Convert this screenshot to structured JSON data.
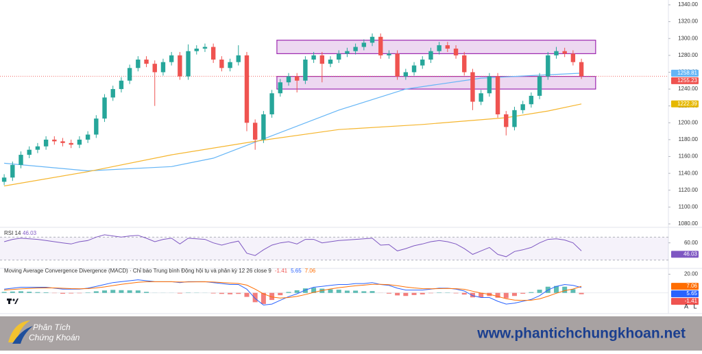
{
  "chart_data": [
    {
      "type": "candlestick",
      "xlim": [
        -0.5,
        79.4
      ],
      "ylim": [
        1080,
        1340
      ],
      "yticks": [
        {
          "value": 1080,
          "label": "1080.00"
        },
        {
          "value": 1100,
          "label": "1100.00"
        },
        {
          "value": 1120,
          "label": "1120.00"
        },
        {
          "value": 1140,
          "label": "1140.00"
        },
        {
          "value": 1160,
          "label": "1160.00"
        },
        {
          "value": 1180,
          "label": "1180.00"
        },
        {
          "value": 1200,
          "label": "1200.00"
        },
        {
          "value": 1220,
          "label": "1220.00"
        },
        {
          "value": 1240,
          "label": "1240.00"
        },
        {
          "value": 1260,
          "label": "1260.00"
        },
        {
          "value": 1280,
          "label": "1280.00"
        },
        {
          "value": 1300,
          "label": "1300.00"
        },
        {
          "value": 1320,
          "label": "1320.00"
        },
        {
          "value": 1340,
          "label": "1340.00"
        }
      ],
      "up_color": "#26a69a",
      "down_color": "#ef5350",
      "open": [
        1130,
        1135,
        1150,
        1162,
        1168,
        1172,
        1180,
        1178,
        1176,
        1174,
        1180,
        1186,
        1205,
        1230,
        1240,
        1250,
        1265,
        1275,
        1270,
        1260,
        1272,
        1280,
        1255,
        1285,
        1288,
        1290,
        1275,
        1265,
        1272,
        1280,
        1200,
        1180,
        1210,
        1235,
        1248,
        1255,
        1250,
        1275,
        1280,
        1270,
        1275,
        1282,
        1285,
        1290,
        1295,
        1302,
        1280,
        1282,
        1255,
        1260,
        1268,
        1275,
        1285,
        1292,
        1288,
        1280,
        1260,
        1225,
        1235,
        1255,
        1210,
        1195,
        1215,
        1222,
        1232,
        1255,
        1280,
        1285,
        1282,
        1272
      ],
      "high": [
        1139,
        1154,
        1166,
        1172,
        1176,
        1184,
        1184,
        1182,
        1180,
        1184,
        1190,
        1209,
        1234,
        1244,
        1254,
        1269,
        1279,
        1279,
        1274,
        1276,
        1284,
        1284,
        1293,
        1292,
        1294,
        1294,
        1279,
        1276,
        1292,
        1284,
        1204,
        1214,
        1239,
        1252,
        1259,
        1259,
        1279,
        1284,
        1284,
        1279,
        1286,
        1289,
        1294,
        1299,
        1306,
        1306,
        1286,
        1286,
        1264,
        1272,
        1279,
        1289,
        1296,
        1296,
        1292,
        1284,
        1264,
        1239,
        1259,
        1259,
        1214,
        1219,
        1226,
        1236,
        1259,
        1284,
        1290,
        1289,
        1286,
        1276
      ],
      "low": [
        1126,
        1131,
        1146,
        1158,
        1164,
        1168,
        1174,
        1172,
        1170,
        1170,
        1176,
        1182,
        1201,
        1226,
        1236,
        1246,
        1261,
        1266,
        1220,
        1256,
        1268,
        1251,
        1251,
        1281,
        1284,
        1271,
        1261,
        1261,
        1268,
        1190,
        1168,
        1176,
        1206,
        1231,
        1244,
        1236,
        1246,
        1271,
        1248,
        1266,
        1271,
        1278,
        1281,
        1286,
        1291,
        1276,
        1276,
        1251,
        1251,
        1256,
        1264,
        1271,
        1281,
        1284,
        1276,
        1256,
        1215,
        1221,
        1231,
        1206,
        1185,
        1191,
        1211,
        1218,
        1228,
        1251,
        1276,
        1278,
        1268,
        1252
      ],
      "close": [
        1135,
        1150,
        1162,
        1168,
        1172,
        1180,
        1178,
        1176,
        1174,
        1180,
        1186,
        1205,
        1230,
        1240,
        1250,
        1265,
        1275,
        1270,
        1260,
        1272,
        1280,
        1255,
        1285,
        1288,
        1290,
        1275,
        1265,
        1272,
        1280,
        1200,
        1180,
        1210,
        1235,
        1248,
        1255,
        1250,
        1275,
        1280,
        1270,
        1275,
        1282,
        1285,
        1290,
        1295,
        1302,
        1280,
        1282,
        1255,
        1260,
        1268,
        1275,
        1285,
        1292,
        1288,
        1280,
        1260,
        1225,
        1235,
        1255,
        1210,
        1195,
        1215,
        1222,
        1232,
        1255,
        1280,
        1285,
        1282,
        1272,
        1255.23
      ],
      "lines": [
        {
          "color": "#64b5f6",
          "x": [
            0,
            10,
            20,
            25,
            30,
            40,
            48,
            57,
            63,
            69
          ],
          "values": [
            1152,
            1143,
            1148,
            1158,
            1177,
            1215,
            1240,
            1253,
            1256,
            1258.81
          ]
        },
        {
          "color": "#f5b52d",
          "x": [
            0,
            10,
            20,
            30,
            40,
            50,
            60,
            65,
            69
          ],
          "values": [
            1125,
            1142,
            1162,
            1178,
            1192,
            1198,
            1206,
            1214,
            1222.39
          ]
        }
      ],
      "zones": [
        {
          "from": 32.6,
          "to": 70.7,
          "low": 1282,
          "high": 1298,
          "color": "#9c27b0"
        },
        {
          "from": 32.6,
          "to": 70.7,
          "low": 1240,
          "high": 1255,
          "color": "#9c27b0"
        }
      ]
    },
    {
      "type": "rsi",
      "title": "RSI 14",
      "xlim": [
        -0.5,
        79.4
      ],
      "ylim": [
        18,
        81
      ],
      "yticks": [
        {
          "value": 60,
          "label": "60.00"
        }
      ],
      "bands": [
        30,
        70
      ],
      "color": "#7e57c2",
      "values": [
        62,
        66,
        68,
        67,
        66,
        64,
        62,
        60,
        58,
        62,
        64,
        70,
        74,
        72,
        70,
        72,
        73,
        68,
        62,
        66,
        68,
        58,
        68,
        67,
        66,
        60,
        56,
        60,
        63,
        42,
        38,
        48,
        56,
        60,
        62,
        58,
        66,
        66,
        60,
        62,
        64,
        65,
        66,
        67,
        68,
        56,
        57,
        46,
        50,
        55,
        58,
        62,
        64,
        62,
        58,
        50,
        40,
        46,
        52,
        40,
        36,
        45,
        48,
        52,
        60,
        66,
        67,
        65,
        60,
        46.03
      ]
    },
    {
      "type": "macd",
      "title": "Moving Average Convergence Divergence (MACD) · Chỉ báo Trung bình Động hội tụ và phân kỳ 12 26 close 9",
      "xlim": [
        -0.5,
        79.4
      ],
      "ylim": [
        -20,
        24
      ],
      "yticks": [
        {
          "value": 20,
          "label": "20.00"
        }
      ],
      "histogram": {
        "up_color": "#26a69a",
        "down_color": "#ef5350",
        "values": [
          1,
          1.4,
          1.7,
          1.2,
          0.8,
          0.6,
          -0.3,
          -0.9,
          -0.6,
          -0.4,
          0.4,
          1.7,
          2.6,
          3.2,
          2.9,
          2.7,
          2.6,
          1.1,
          0.1,
          0.1,
          0.1,
          -0.6,
          0.3,
          0.2,
          0.1,
          -0.6,
          -1.1,
          -1.5,
          -1.1,
          -4.3,
          -10,
          -11.9,
          -7.6,
          -2.5,
          1,
          2.8,
          4.8,
          5.5,
          4.5,
          3.8,
          3.4,
          2.4,
          2.4,
          1.7,
          1.9,
          -0.1,
          -0.8,
          -2.7,
          -3.3,
          -2.3,
          -1.6,
          -0.4,
          0.4,
          0.3,
          -0.5,
          -1.8,
          -4.8,
          -4.8,
          -3.4,
          -5.2,
          -5.7,
          -3.3,
          -0.9,
          0.8,
          3.4,
          6.6,
          7.4,
          6.6,
          3.9,
          -1.41
        ]
      },
      "series": [
        {
          "color": "#2962ff",
          "values": [
            4,
            5,
            6,
            6,
            6,
            6,
            5,
            4,
            4,
            4,
            5,
            7,
            9,
            11,
            12,
            13,
            14,
            13,
            12,
            12,
            12,
            11,
            12,
            12,
            12,
            11,
            10,
            9,
            9,
            4,
            -6,
            -13,
            -12,
            -8,
            -4,
            -1,
            3,
            6,
            7,
            8,
            9,
            9,
            10,
            10,
            11,
            9,
            8,
            5,
            3,
            3,
            3,
            4,
            5,
            5,
            4,
            2,
            -3,
            -5,
            -5,
            -9,
            -12,
            -11,
            -9,
            -7,
            -3,
            3,
            7,
            9,
            8,
            5.65
          ]
        },
        {
          "color": "#ff6d00",
          "values": [
            3,
            3.6,
            4.3,
            4.8,
            5.2,
            5.4,
            5.3,
            4.9,
            4.6,
            4.4,
            4.6,
            5.3,
            6.4,
            7.8,
            9.1,
            10.3,
            11.4,
            11.9,
            11.9,
            11.9,
            11.9,
            11.6,
            11.7,
            11.8,
            11.9,
            11.6,
            11.1,
            10.5,
            10.1,
            8.3,
            4,
            -1.1,
            -4.4,
            -5.5,
            -5,
            -3.8,
            -1.8,
            0.5,
            2.5,
            4.2,
            5.6,
            6.6,
            7.6,
            8.3,
            9.1,
            9.1,
            8.8,
            7.7,
            6.3,
            5.3,
            4.6,
            4.4,
            4.6,
            4.7,
            4.5,
            3.8,
            1.8,
            -0.2,
            -1.6,
            -3.8,
            -6.3,
            -7.7,
            -8.1,
            -7.8,
            -6.4,
            -3.6,
            -0.4,
            2.4,
            4.1,
            7.06
          ]
        }
      ]
    }
  ],
  "controls": [
    "A",
    "L"
  ],
  "banner": {
    "brand": [
      "Phân Tích",
      "Chứng Khoán"
    ],
    "url": "www.phantichchungkhoan.net"
  }
}
